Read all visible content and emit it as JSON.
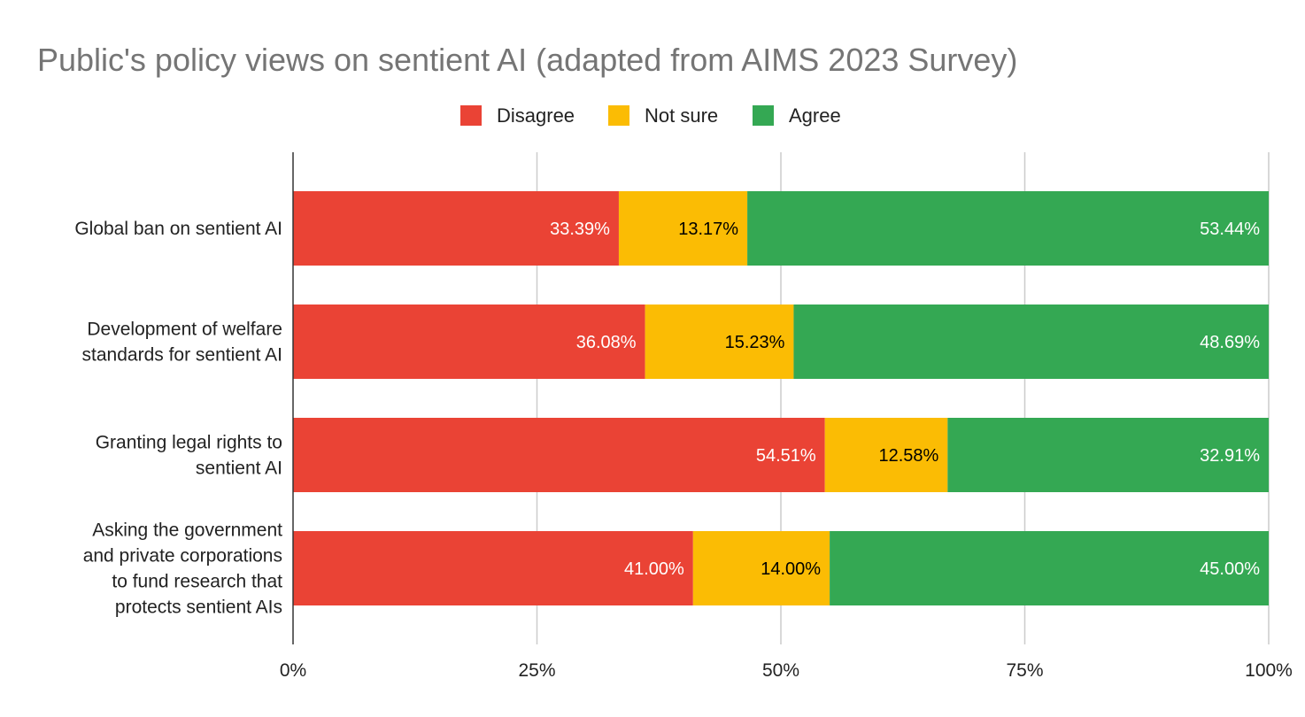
{
  "chart_data": {
    "type": "bar",
    "orientation": "horizontal",
    "stacking": "percent",
    "title": "Public's policy views on sentient AI (adapted from AIMS 2023 Survey)",
    "legend_position": "top",
    "categories": [
      [
        "Global ban on sentient AI"
      ],
      [
        "Development of welfare",
        "standards for sentient AI"
      ],
      [
        "Granting legal rights to",
        "sentient AI"
      ],
      [
        "Asking the government",
        "and private corporations",
        "to fund research that",
        "protects sentient AIs"
      ]
    ],
    "series": [
      {
        "name": "Disagree",
        "color": "#EA4335",
        "label_color": "#ffffff",
        "values": [
          33.39,
          36.08,
          54.51,
          41.0
        ],
        "labels": [
          "33.39%",
          "36.08%",
          "54.51%",
          "41.00%"
        ]
      },
      {
        "name": "Not sure",
        "color": "#FBBC04",
        "label_color": "#000000",
        "values": [
          13.17,
          15.23,
          12.58,
          14.0
        ],
        "labels": [
          "13.17%",
          "15.23%",
          "12.58%",
          "14.00%"
        ]
      },
      {
        "name": "Agree",
        "color": "#34A853",
        "label_color": "#ffffff",
        "values": [
          53.44,
          48.69,
          32.91,
          45.0
        ],
        "labels": [
          "53.44%",
          "48.69%",
          "32.91%",
          "45.00%"
        ]
      }
    ],
    "xaxis": {
      "range": [
        0,
        100
      ],
      "ticks": [
        0,
        25,
        50,
        75,
        100
      ],
      "tick_labels": [
        "0%",
        "25%",
        "50%",
        "75%",
        "100%"
      ],
      "grid": true
    },
    "xlabel": "",
    "ylabel": ""
  }
}
